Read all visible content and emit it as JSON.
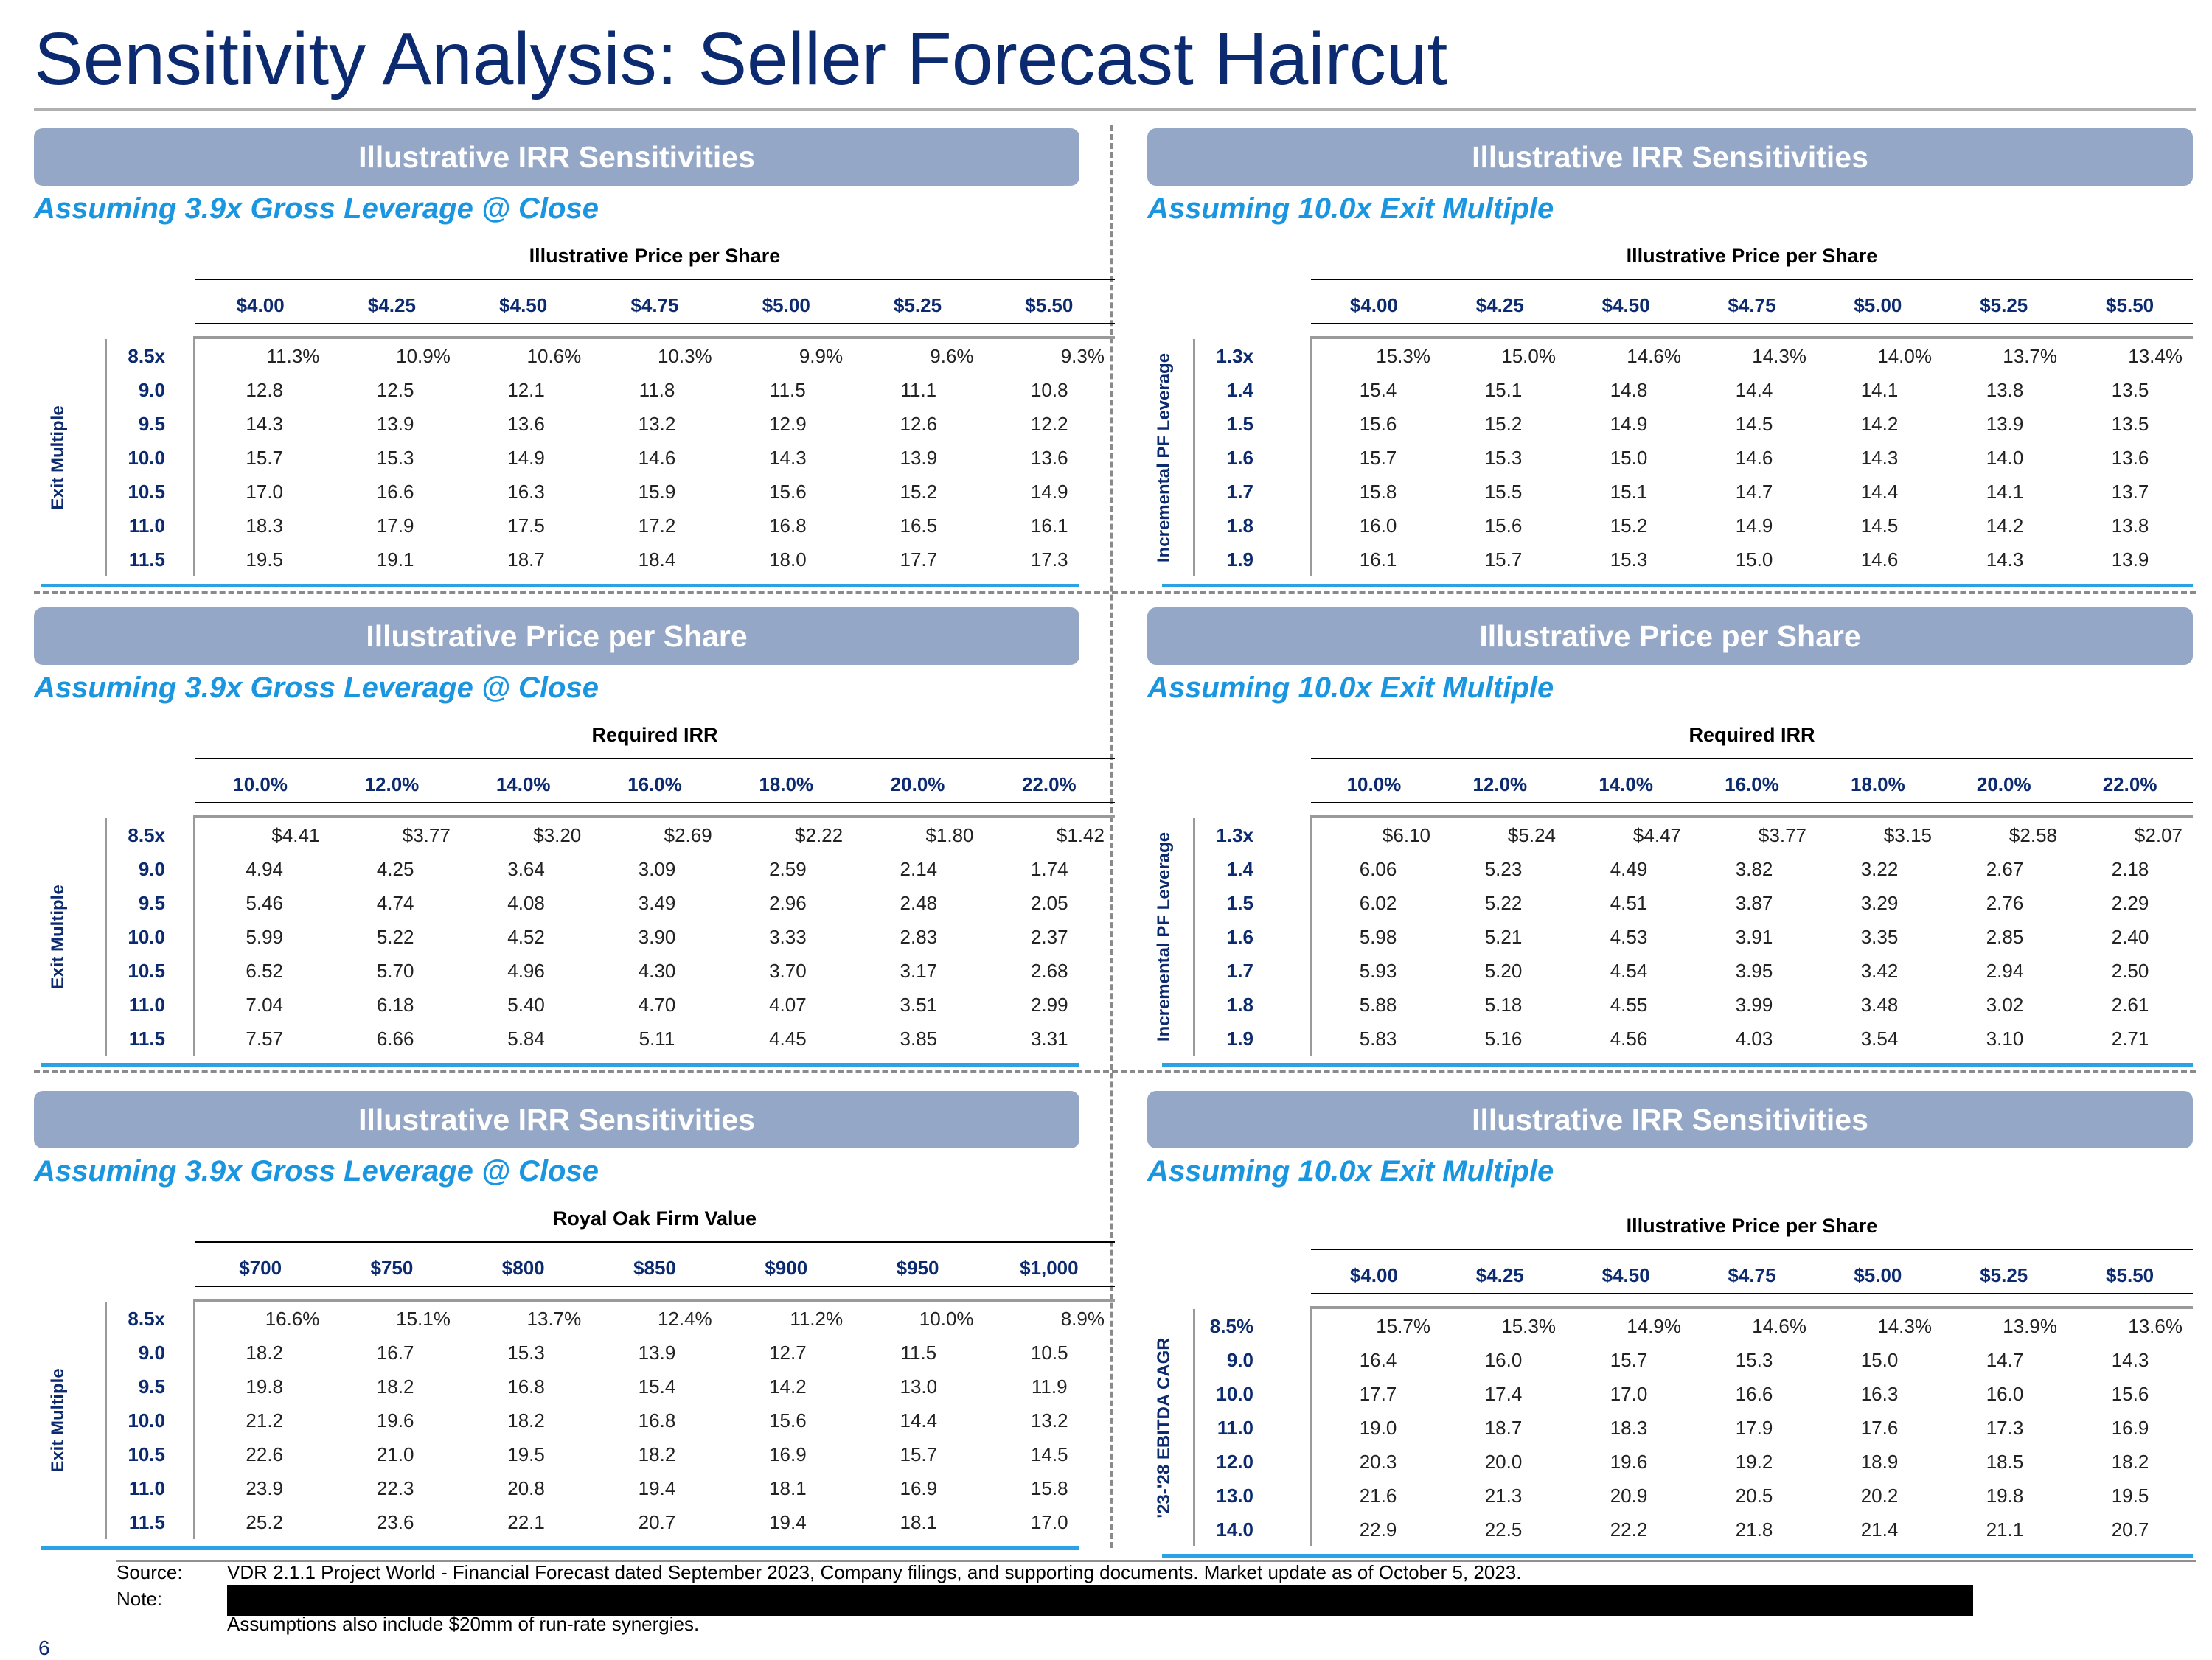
{
  "title": "Sensitivity Analysis: Seller Forecast Haircut",
  "panels": [
    {
      "header": "Illustrative IRR Sensitivities",
      "subtitle": "Assuming 3.9x Gross Leverage @ Close",
      "col_title": "Illustrative Price per Share",
      "row_title": "Exit Multiple",
      "cols": [
        "$4.00",
        "$4.25",
        "$4.50",
        "$4.75",
        "$5.00",
        "$5.25",
        "$5.50"
      ],
      "rows": [
        "8.5x",
        "9.0",
        "9.5",
        "10.0",
        "10.5",
        "11.0",
        "11.5"
      ],
      "values": [
        [
          "11.3%",
          "10.9%",
          "10.6%",
          "10.3%",
          "9.9%",
          "9.6%",
          "9.3%"
        ],
        [
          "12.8",
          "12.5",
          "12.1",
          "11.8",
          "11.5",
          "11.1",
          "10.8"
        ],
        [
          "14.3",
          "13.9",
          "13.6",
          "13.2",
          "12.9",
          "12.6",
          "12.2"
        ],
        [
          "15.7",
          "15.3",
          "14.9",
          "14.6",
          "14.3",
          "13.9",
          "13.6"
        ],
        [
          "17.0",
          "16.6",
          "16.3",
          "15.9",
          "15.6",
          "15.2",
          "14.9"
        ],
        [
          "18.3",
          "17.9",
          "17.5",
          "17.2",
          "16.8",
          "16.5",
          "16.1"
        ],
        [
          "19.5",
          "19.1",
          "18.7",
          "18.4",
          "18.0",
          "17.7",
          "17.3"
        ]
      ]
    },
    {
      "header": "Illustrative IRR Sensitivities",
      "subtitle": "Assuming 10.0x Exit Multiple",
      "col_title": "Illustrative Price per Share",
      "row_title": "Incremental PF Leverage",
      "cols": [
        "$4.00",
        "$4.25",
        "$4.50",
        "$4.75",
        "$5.00",
        "$5.25",
        "$5.50"
      ],
      "rows": [
        "1.3x",
        "1.4",
        "1.5",
        "1.6",
        "1.7",
        "1.8",
        "1.9"
      ],
      "values": [
        [
          "15.3%",
          "15.0%",
          "14.6%",
          "14.3%",
          "14.0%",
          "13.7%",
          "13.4%"
        ],
        [
          "15.4",
          "15.1",
          "14.8",
          "14.4",
          "14.1",
          "13.8",
          "13.5"
        ],
        [
          "15.6",
          "15.2",
          "14.9",
          "14.5",
          "14.2",
          "13.9",
          "13.5"
        ],
        [
          "15.7",
          "15.3",
          "15.0",
          "14.6",
          "14.3",
          "14.0",
          "13.6"
        ],
        [
          "15.8",
          "15.5",
          "15.1",
          "14.7",
          "14.4",
          "14.1",
          "13.7"
        ],
        [
          "16.0",
          "15.6",
          "15.2",
          "14.9",
          "14.5",
          "14.2",
          "13.8"
        ],
        [
          "16.1",
          "15.7",
          "15.3",
          "15.0",
          "14.6",
          "14.3",
          "13.9"
        ]
      ]
    },
    {
      "header": "Illustrative Price per Share",
      "subtitle": "Assuming 3.9x Gross Leverage @ Close",
      "col_title": "Required IRR",
      "row_title": "Exit Multiple",
      "cols": [
        "10.0%",
        "12.0%",
        "14.0%",
        "16.0%",
        "18.0%",
        "20.0%",
        "22.0%"
      ],
      "rows": [
        "8.5x",
        "9.0",
        "9.5",
        "10.0",
        "10.5",
        "11.0",
        "11.5"
      ],
      "values": [
        [
          "$4.41",
          "$3.77",
          "$3.20",
          "$2.69",
          "$2.22",
          "$1.80",
          "$1.42"
        ],
        [
          "4.94",
          "4.25",
          "3.64",
          "3.09",
          "2.59",
          "2.14",
          "1.74"
        ],
        [
          "5.46",
          "4.74",
          "4.08",
          "3.49",
          "2.96",
          "2.48",
          "2.05"
        ],
        [
          "5.99",
          "5.22",
          "4.52",
          "3.90",
          "3.33",
          "2.83",
          "2.37"
        ],
        [
          "6.52",
          "5.70",
          "4.96",
          "4.30",
          "3.70",
          "3.17",
          "2.68"
        ],
        [
          "7.04",
          "6.18",
          "5.40",
          "4.70",
          "4.07",
          "3.51",
          "2.99"
        ],
        [
          "7.57",
          "6.66",
          "5.84",
          "5.11",
          "4.45",
          "3.85",
          "3.31"
        ]
      ]
    },
    {
      "header": "Illustrative Price per Share",
      "subtitle": "Assuming 10.0x Exit Multiple",
      "col_title": "Required IRR",
      "row_title": "Incremental PF Leverage",
      "cols": [
        "10.0%",
        "12.0%",
        "14.0%",
        "16.0%",
        "18.0%",
        "20.0%",
        "22.0%"
      ],
      "rows": [
        "1.3x",
        "1.4",
        "1.5",
        "1.6",
        "1.7",
        "1.8",
        "1.9"
      ],
      "values": [
        [
          "$6.10",
          "$5.24",
          "$4.47",
          "$3.77",
          "$3.15",
          "$2.58",
          "$2.07"
        ],
        [
          "6.06",
          "5.23",
          "4.49",
          "3.82",
          "3.22",
          "2.67",
          "2.18"
        ],
        [
          "6.02",
          "5.22",
          "4.51",
          "3.87",
          "3.29",
          "2.76",
          "2.29"
        ],
        [
          "5.98",
          "5.21",
          "4.53",
          "3.91",
          "3.35",
          "2.85",
          "2.40"
        ],
        [
          "5.93",
          "5.20",
          "4.54",
          "3.95",
          "3.42",
          "2.94",
          "2.50"
        ],
        [
          "5.88",
          "5.18",
          "4.55",
          "3.99",
          "3.48",
          "3.02",
          "2.61"
        ],
        [
          "5.83",
          "5.16",
          "4.56",
          "4.03",
          "3.54",
          "3.10",
          "2.71"
        ]
      ]
    },
    {
      "header": "Illustrative IRR Sensitivities",
      "subtitle": "Assuming 3.9x Gross Leverage @ Close",
      "col_title": "Royal Oak Firm Value",
      "row_title": "Exit Multiple",
      "cols": [
        "$700",
        "$750",
        "$800",
        "$850",
        "$900",
        "$950",
        "$1,000"
      ],
      "rows": [
        "8.5x",
        "9.0",
        "9.5",
        "10.0",
        "10.5",
        "11.0",
        "11.5"
      ],
      "values": [
        [
          "16.6%",
          "15.1%",
          "13.7%",
          "12.4%",
          "11.2%",
          "10.0%",
          "8.9%"
        ],
        [
          "18.2",
          "16.7",
          "15.3",
          "13.9",
          "12.7",
          "11.5",
          "10.5"
        ],
        [
          "19.8",
          "18.2",
          "16.8",
          "15.4",
          "14.2",
          "13.0",
          "11.9"
        ],
        [
          "21.2",
          "19.6",
          "18.2",
          "16.8",
          "15.6",
          "14.4",
          "13.2"
        ],
        [
          "22.6",
          "21.0",
          "19.5",
          "18.2",
          "16.9",
          "15.7",
          "14.5"
        ],
        [
          "23.9",
          "22.3",
          "20.8",
          "19.4",
          "18.1",
          "16.9",
          "15.8"
        ],
        [
          "25.2",
          "23.6",
          "22.1",
          "20.7",
          "19.4",
          "18.1",
          "17.0"
        ]
      ]
    },
    {
      "header": "Illustrative IRR Sensitivities",
      "subtitle": "Assuming 10.0x Exit Multiple",
      "col_title": "Illustrative Price per Share",
      "row_title": "'23-'28 EBITDA CAGR",
      "cols": [
        "$4.00",
        "$4.25",
        "$4.50",
        "$4.75",
        "$5.00",
        "$5.25",
        "$5.50"
      ],
      "rows": [
        "8.5%",
        "9.0",
        "10.0",
        "11.0",
        "12.0",
        "13.0",
        "14.0"
      ],
      "values": [
        [
          "15.7%",
          "15.3%",
          "14.9%",
          "14.6%",
          "14.3%",
          "13.9%",
          "13.6%"
        ],
        [
          "16.4",
          "16.0",
          "15.7",
          "15.3",
          "15.0",
          "14.7",
          "14.3"
        ],
        [
          "17.7",
          "17.4",
          "17.0",
          "16.6",
          "16.3",
          "16.0",
          "15.6"
        ],
        [
          "19.0",
          "18.7",
          "18.3",
          "17.9",
          "17.6",
          "17.3",
          "16.9"
        ],
        [
          "20.3",
          "20.0",
          "19.6",
          "19.2",
          "18.9",
          "18.5",
          "18.2"
        ],
        [
          "21.6",
          "21.3",
          "20.9",
          "20.5",
          "20.2",
          "19.8",
          "19.5"
        ],
        [
          "22.9",
          "22.5",
          "22.2",
          "21.8",
          "21.4",
          "21.1",
          "20.7"
        ]
      ]
    }
  ],
  "footer": {
    "source_label": "Source:",
    "source_text": "VDR 2.1.1 Project World - Financial Forecast dated September 2023, Company filings, and supporting documents. Market update as of October 5, 2023.",
    "note_label": "Note:",
    "note_text": "Assumptions also include $20mm of run-rate synergies.",
    "page": "6"
  }
}
